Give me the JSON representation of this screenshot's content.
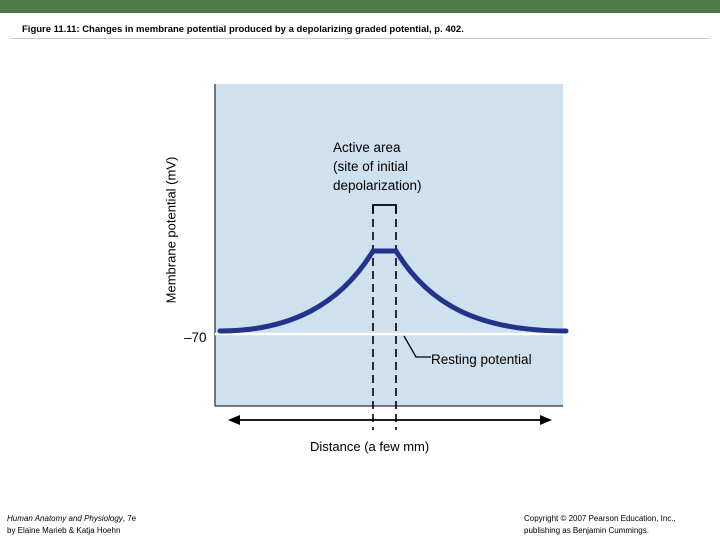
{
  "header": {
    "title": "Figure 11.11:  Changes in membrane potential produced by a depolarizing graded potential, p. 402."
  },
  "diagram": {
    "y_axis_label": "Membrane potential (mV)",
    "y_tick": "–70",
    "active_area_label": [
      "Active area",
      "(site of initial",
      "depolarization)"
    ],
    "resting_label": "Resting potential",
    "x_axis_label": "Distance (a few mm)"
  },
  "footer": {
    "left_title": "Human Anatomy and Physiology",
    "left_edition": ", 7e",
    "left_authors": "by Elaine Marieb & Katja Hoehn",
    "right_line1": "Copyright © 2007 Pearson Education, Inc.,",
    "right_line2": "publishing as Benjamin Cummings."
  },
  "colors": {
    "top_bar": "#4e7a4a",
    "plot_background": "#cfe0ee",
    "curve": "#22338c",
    "baseline": "#ffffff"
  }
}
